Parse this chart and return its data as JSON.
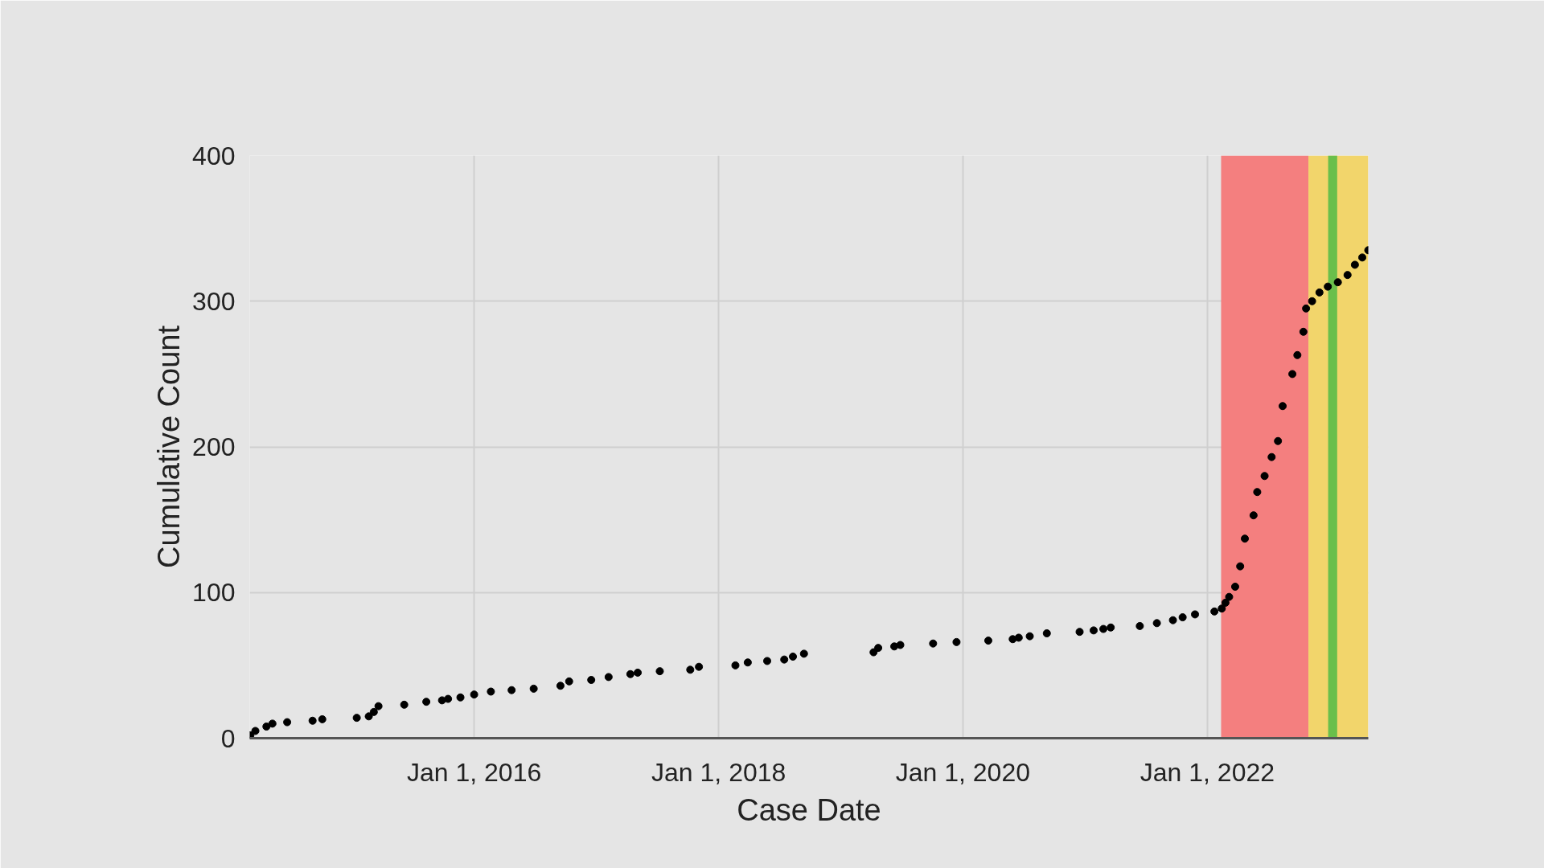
{
  "chart_data": {
    "type": "scatter",
    "xlabel": "Case Date",
    "ylabel": "Cumulative Count",
    "x": [
      "2014-03-03",
      "2014-03-18",
      "2014-04-20",
      "2014-05-08",
      "2014-06-21",
      "2014-09-05",
      "2014-10-04",
      "2015-01-15",
      "2015-02-20",
      "2015-03-07",
      "2015-03-21",
      "2015-06-06",
      "2015-08-11",
      "2015-09-27",
      "2015-10-15",
      "2015-11-21",
      "2016-01-01",
      "2016-02-20",
      "2016-04-22",
      "2016-06-27",
      "2016-09-15",
      "2016-10-11",
      "2016-12-16",
      "2017-02-06",
      "2017-04-12",
      "2017-05-04",
      "2017-07-09",
      "2017-10-08",
      "2017-11-03",
      "2018-02-20",
      "2018-03-29",
      "2018-05-26",
      "2018-07-16",
      "2018-08-11",
      "2018-09-13",
      "2019-04-09",
      "2019-04-23",
      "2019-06-10",
      "2019-06-28",
      "2019-10-04",
      "2019-12-13",
      "2020-03-17",
      "2020-05-29",
      "2020-06-16",
      "2020-07-19",
      "2020-09-08",
      "2020-12-15",
      "2021-01-26",
      "2021-02-24",
      "2021-03-18",
      "2021-06-13",
      "2021-08-03",
      "2021-09-20",
      "2021-10-19",
      "2021-11-25",
      "2022-01-22",
      "2022-02-13",
      "2022-02-24",
      "2022-03-07",
      "2022-03-25",
      "2022-04-09",
      "2022-04-23",
      "2022-05-19",
      "2022-05-30",
      "2022-06-21",
      "2022-07-12",
      "2022-07-31",
      "2022-08-14",
      "2022-09-12",
      "2022-09-27",
      "2022-10-15",
      "2022-10-23",
      "2022-11-10",
      "2022-12-02",
      "2022-12-27",
      "2023-01-26",
      "2023-02-24",
      "2023-03-18",
      "2023-04-09",
      "2023-04-27"
    ],
    "series": [
      {
        "color": "#000000",
        "values": [
          2,
          5,
          8,
          10,
          11,
          12,
          13,
          14,
          15,
          18,
          22,
          23,
          25,
          26,
          27,
          28,
          30,
          32,
          33,
          34,
          36,
          39,
          40,
          42,
          44,
          45,
          46,
          47,
          49,
          50,
          52,
          53,
          54,
          56,
          58,
          59,
          62,
          63,
          64,
          65,
          66,
          67,
          68,
          69,
          70,
          72,
          73,
          74,
          75,
          76,
          77,
          79,
          81,
          83,
          85,
          87,
          89,
          93,
          97,
          104,
          118,
          137,
          153,
          169,
          180,
          193,
          204,
          228,
          250,
          263,
          279,
          295,
          300,
          306,
          310,
          313,
          318,
          325,
          330,
          335
        ]
      }
    ],
    "marker": "circle",
    "xlim": [
      "2014-03-01",
      "2023-04-27"
    ],
    "xticks": [
      {
        "value": "2016-01-01",
        "label": "Jan 1, 2016"
      },
      {
        "value": "2018-01-01",
        "label": "Jan 1, 2018"
      },
      {
        "value": "2020-01-01",
        "label": "Jan 1, 2020"
      },
      {
        "value": "2022-01-01",
        "label": "Jan 1, 2022"
      }
    ],
    "ylim": [
      0,
      400
    ],
    "yticks": [
      0,
      100,
      200,
      300,
      400
    ],
    "grid": true,
    "bands": [
      {
        "axis": "x",
        "from": "2022-02-11",
        "to": "2022-10-30",
        "label": null,
        "color": "#f47f7f"
      },
      {
        "axis": "x",
        "from": "2022-10-30",
        "to": "2023-04-27",
        "label": null,
        "color": "#f2d56b"
      },
      {
        "axis": "x",
        "from": "2022-12-28",
        "to": "2023-01-24",
        "label": null,
        "color": "#6abf4b"
      }
    ]
  }
}
